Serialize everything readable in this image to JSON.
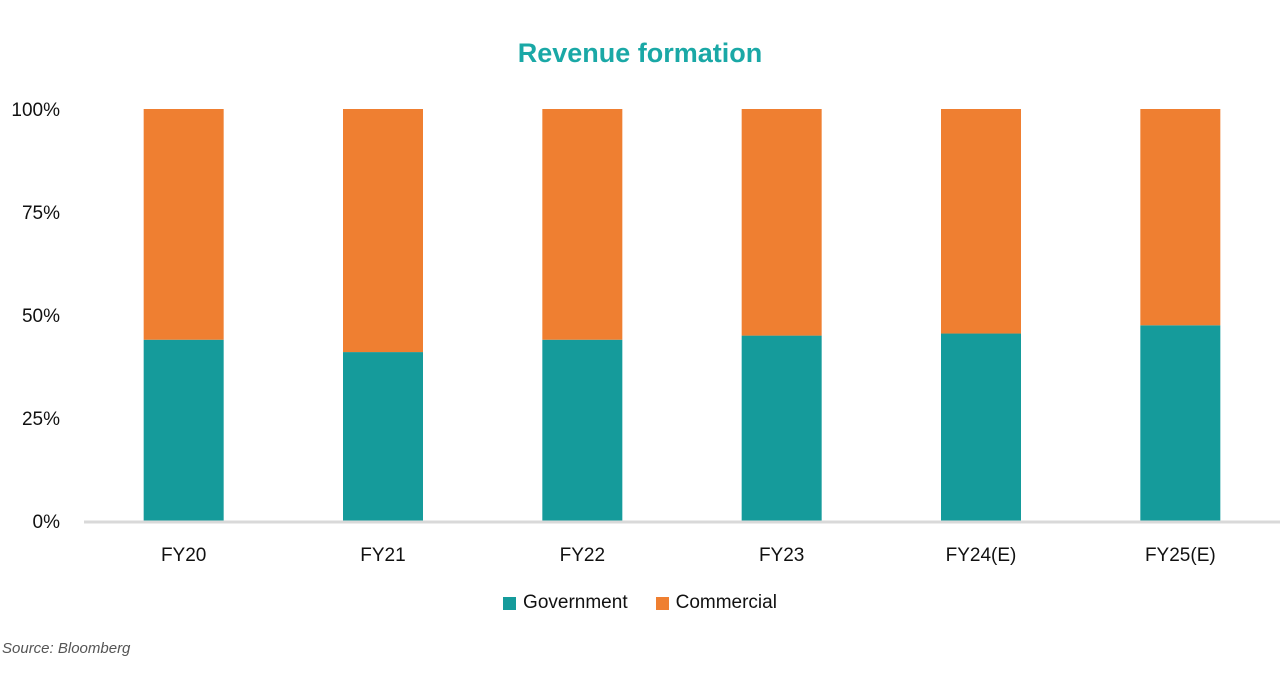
{
  "chart_data": {
    "type": "bar",
    "stacked": true,
    "title": "Revenue formation",
    "categories": [
      "FY20",
      "FY21",
      "FY22",
      "FY23",
      "FY24(E)",
      "FY25(E)"
    ],
    "series": [
      {
        "name": "Government",
        "color": "#159b9b",
        "values": [
          44,
          41,
          44,
          45,
          45.5,
          47.5
        ]
      },
      {
        "name": "Commercial",
        "color": "#ef7f31",
        "values": [
          56,
          59,
          56,
          55,
          54.5,
          52.5
        ]
      }
    ],
    "yticks": [
      "0%",
      "25%",
      "50%",
      "75%",
      "100%"
    ],
    "ylim": [
      0,
      100
    ],
    "legend": "bottom",
    "source": "Source: Bloomberg"
  }
}
